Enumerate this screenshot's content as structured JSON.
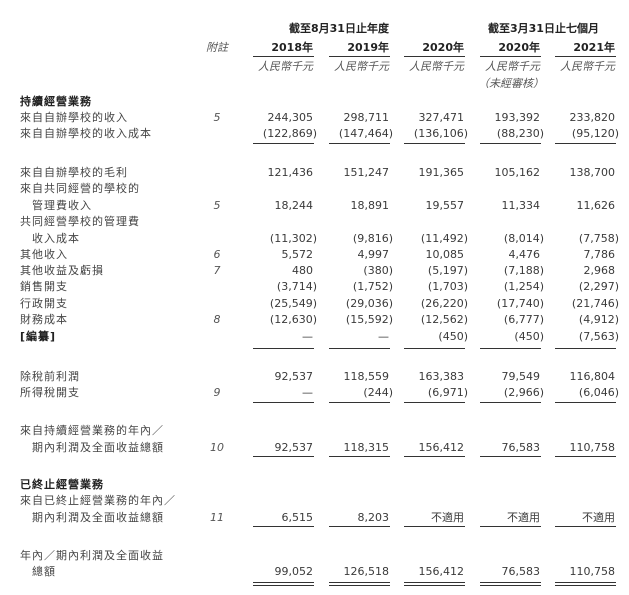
{
  "header": {
    "group_year": "截至8月31日止年度",
    "group_months": "截至3月31日止七個月",
    "note_label": "附註",
    "columns": [
      "2018年",
      "2019年",
      "2020年",
      "2020年",
      "2021年"
    ],
    "units": [
      "人民幣千元",
      "人民幣千元",
      "人民幣千元",
      "人民幣千元",
      "人民幣千元"
    ],
    "unaudited": "（未經審核）"
  },
  "rows": [
    {
      "label": "持續經營業務",
      "section": true
    },
    {
      "label": "來自自辦學校的收入",
      "note": "5",
      "values": [
        "244,305",
        "298,711",
        "327,471",
        "193,392",
        "233,820"
      ]
    },
    {
      "label": "來自自辦學校的收入成本",
      "values": [
        "(122,869)",
        "(147,464)",
        "(136,106)",
        "(88,230)",
        "(95,120)"
      ]
    },
    {
      "label": "來自自辦學校的毛利",
      "values": [
        "121,436",
        "151,247",
        "191,365",
        "105,162",
        "138,700"
      ]
    },
    {
      "label": "來自共同經營的學校的",
      "label_cont": "管理費收入",
      "note": "5",
      "values": [
        "18,244",
        "18,891",
        "19,557",
        "11,334",
        "11,626"
      ]
    },
    {
      "label": "共同經營學校的管理費",
      "label_cont": "收入成本",
      "values": [
        "(11,302)",
        "(9,816)",
        "(11,492)",
        "(8,014)",
        "(7,758)"
      ]
    },
    {
      "label": "其他收入",
      "note": "6",
      "values": [
        "5,572",
        "4,997",
        "10,085",
        "4,476",
        "7,786"
      ]
    },
    {
      "label": "其他收益及虧損",
      "note": "7",
      "values": [
        "480",
        "(380)",
        "(5,197)",
        "(7,188)",
        "2,968"
      ]
    },
    {
      "label": "銷售開支",
      "values": [
        "(3,714)",
        "(1,752)",
        "(1,703)",
        "(1,254)",
        "(2,297)"
      ]
    },
    {
      "label": "行政開支",
      "values": [
        "(25,549)",
        "(29,036)",
        "(26,220)",
        "(17,740)",
        "(21,746)"
      ]
    },
    {
      "label": "財務成本",
      "note": "8",
      "values": [
        "(12,630)",
        "(15,592)",
        "(12,562)",
        "(6,777)",
        "(4,912)"
      ]
    },
    {
      "label": "[編纂]",
      "bold": true,
      "values": [
        "—",
        "—",
        "(450)",
        "(450)",
        "(7,563)"
      ]
    },
    {
      "label": "除稅前利潤",
      "values": [
        "92,537",
        "118,559",
        "163,383",
        "79,549",
        "116,804"
      ]
    },
    {
      "label": "所得稅開支",
      "note": "9",
      "values": [
        "—",
        "(244)",
        "(6,971)",
        "(2,966)",
        "(6,046)"
      ]
    },
    {
      "label": "來自持續經營業務的年內／",
      "label_cont": "期內利潤及全面收益總額",
      "note": "10",
      "values": [
        "92,537",
        "118,315",
        "156,412",
        "76,583",
        "110,758"
      ]
    },
    {
      "label": "已終止經營業務",
      "section": true
    },
    {
      "label": "來自已終止經營業務的年內／",
      "label_cont": "期內利潤及全面收益總額",
      "note": "11",
      "values": [
        "6,515",
        "8,203",
        "不適用",
        "不適用",
        "不適用"
      ]
    },
    {
      "label": "年內／期內利潤及全面收益",
      "label_cont": "總額",
      "values": [
        "99,052",
        "126,518",
        "156,412",
        "76,583",
        "110,758"
      ]
    }
  ]
}
